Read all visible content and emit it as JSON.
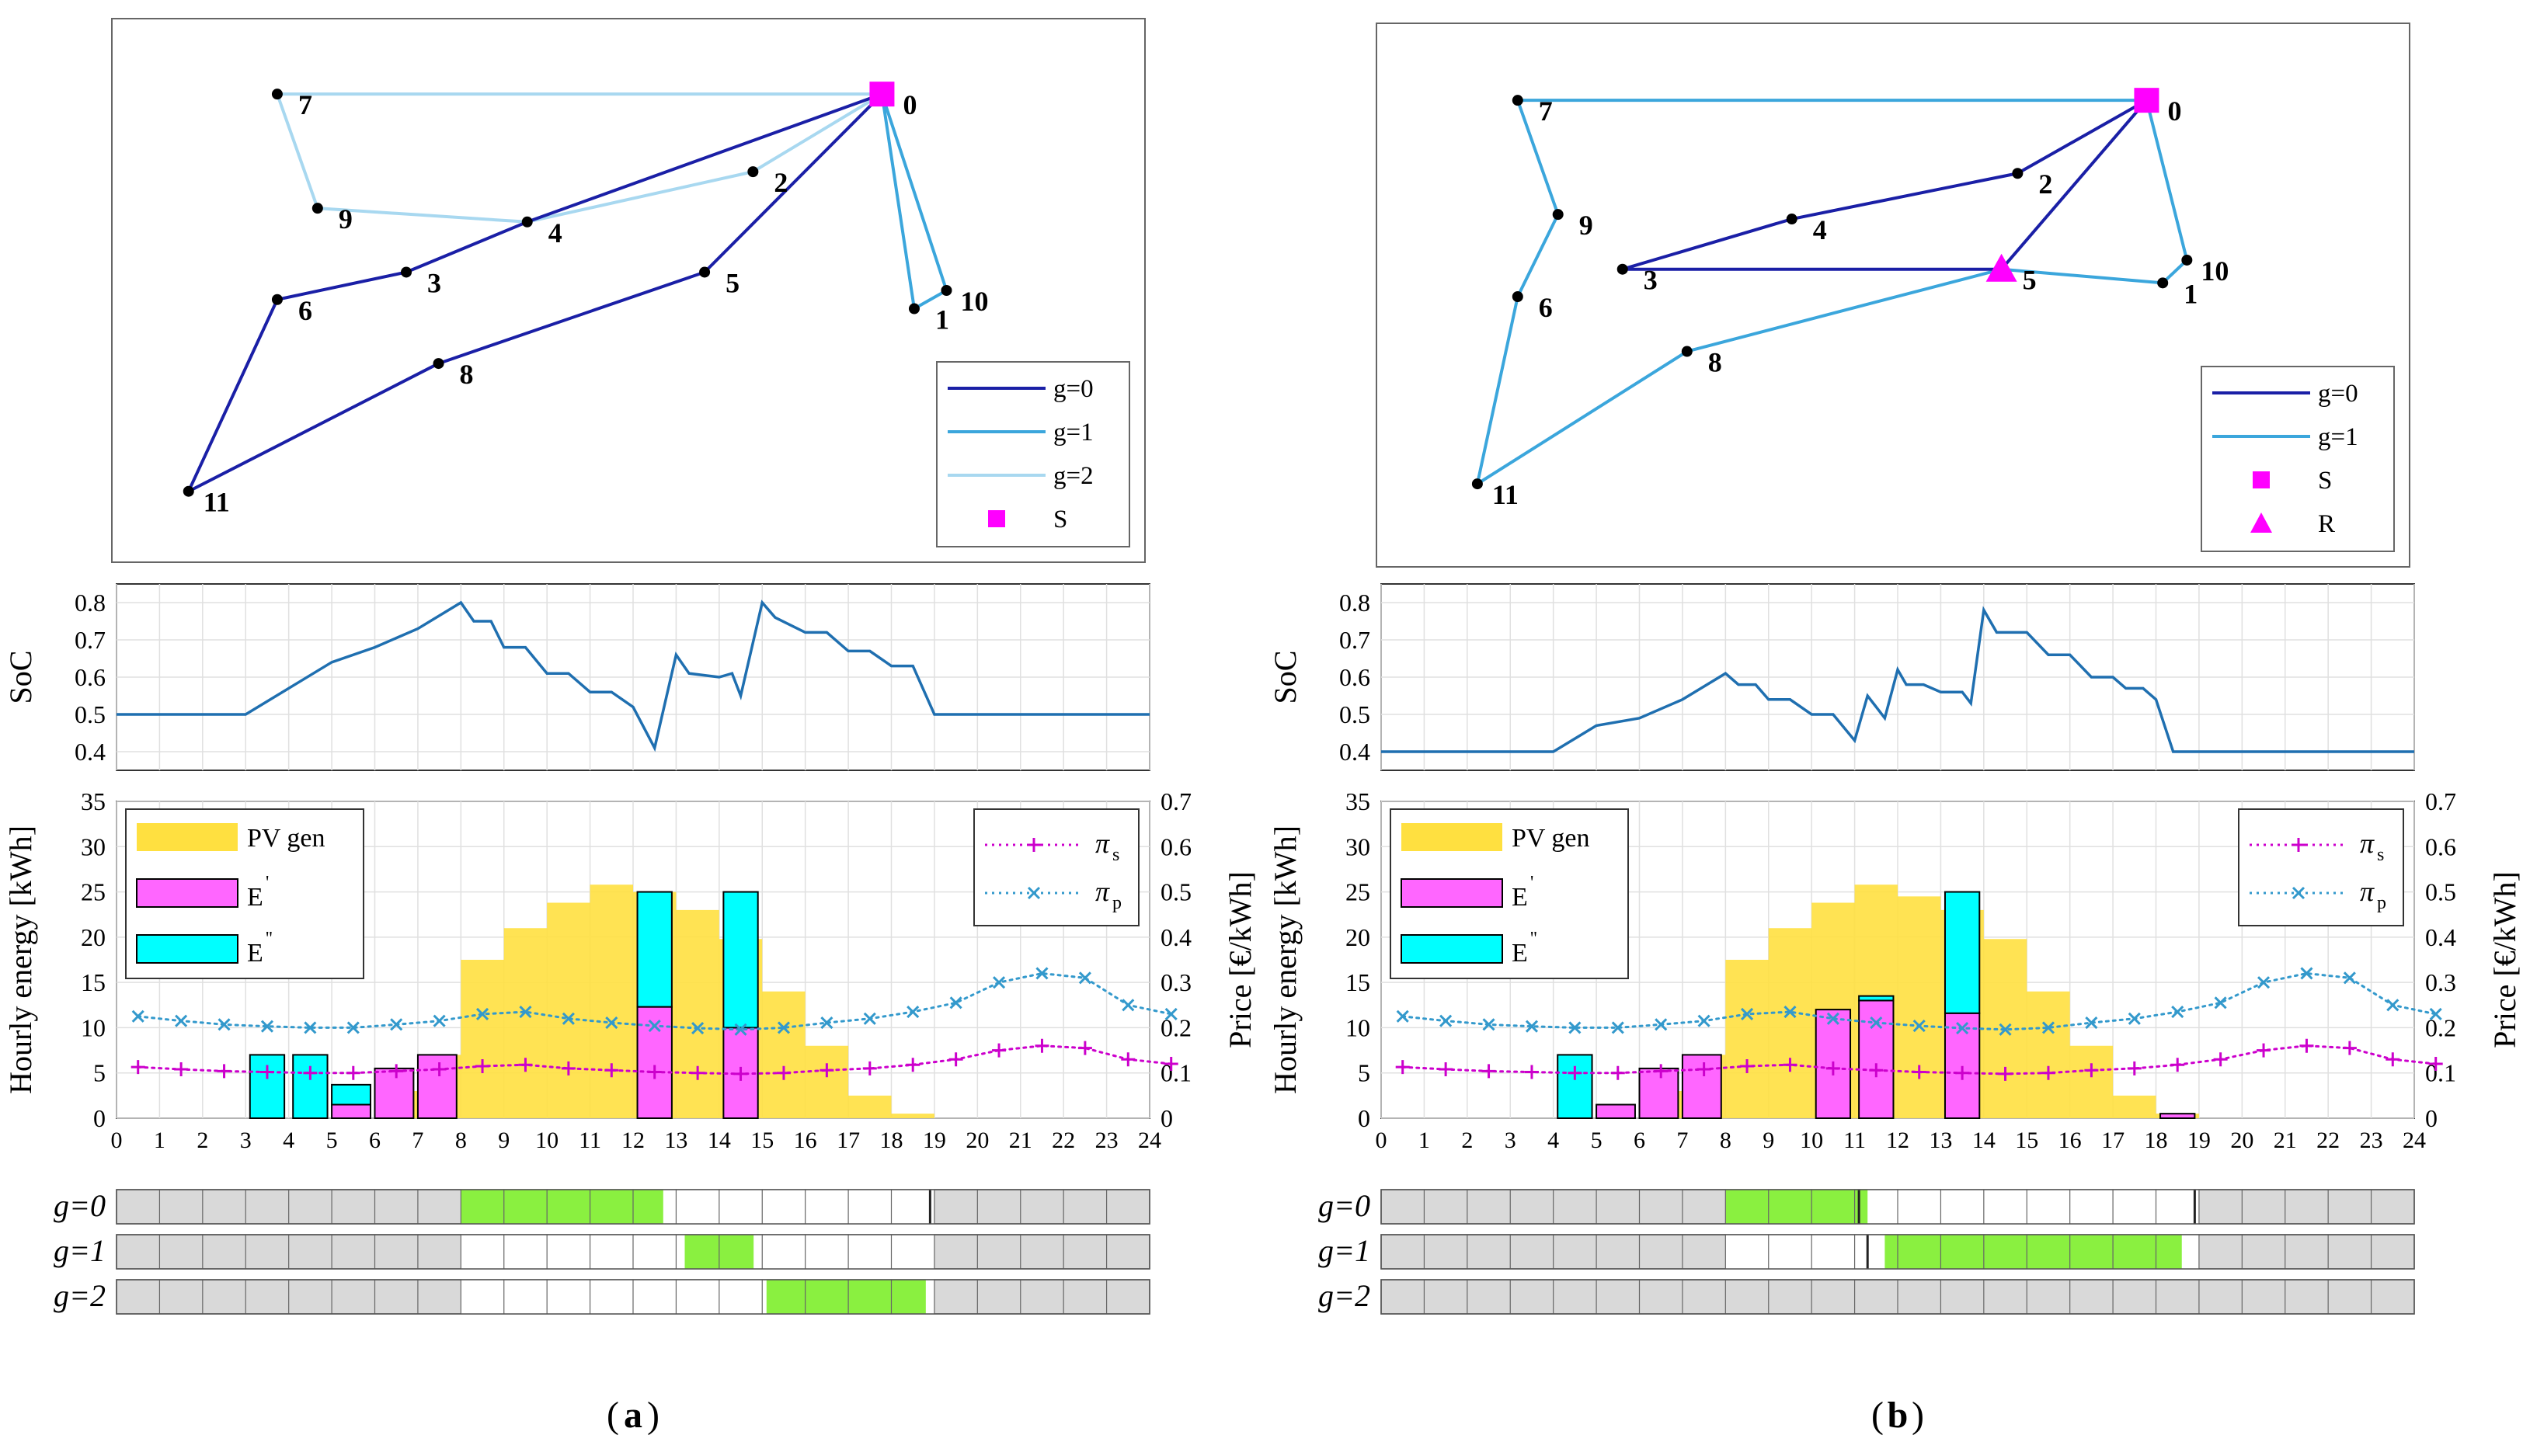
{
  "colors": {
    "g0": "#1a1fa6",
    "g1": "#3ba6dc",
    "g2": "#a8d8f0",
    "station": "#ff00ff",
    "pv": "#ffe040",
    "e_prime": "#ff66ff",
    "e_dprime": "#00ffff",
    "pi_s": "#cc00cc",
    "pi_p": "#3399cc",
    "soc": "#1f6fb0",
    "gantt_green": "#8af040",
    "gantt_gray": "#d9d9d9",
    "grid": "#e0e0e0"
  },
  "chart_data": [
    {
      "panel": "a",
      "caption_letter": "a",
      "routes": {
        "type": "scatter",
        "node_labels": [
          "0",
          "1",
          "2",
          "3",
          "4",
          "5",
          "6",
          "7",
          "8",
          "9",
          "10",
          "11"
        ],
        "nodes": {
          "0": [
            8.8,
            9.3
          ],
          "1": [
            9.2,
            4.6
          ],
          "2": [
            7.2,
            7.6
          ],
          "3": [
            2.9,
            5.4
          ],
          "4": [
            4.4,
            6.5
          ],
          "5": [
            6.6,
            5.4
          ],
          "6": [
            1.3,
            4.8
          ],
          "7": [
            1.3,
            9.3
          ],
          "8": [
            3.3,
            3.4
          ],
          "9": [
            1.8,
            6.8
          ],
          "10": [
            9.6,
            5.0
          ],
          "11": [
            0.2,
            0.6
          ]
        },
        "routes": [
          {
            "g": 0,
            "path": [
              "0",
              "4",
              "3",
              "6",
              "11",
              "8",
              "5",
              "0"
            ]
          },
          {
            "g": 1,
            "path": [
              "0",
              "10",
              "1",
              "0"
            ]
          },
          {
            "g": 2,
            "path": [
              "0",
              "7",
              "9",
              "4",
              "2",
              "0"
            ]
          }
        ],
        "station_nodes": [
          {
            "node": "0",
            "marker": "S"
          }
        ],
        "legend": [
          "g=0",
          "g=1",
          "g=2",
          "S"
        ]
      },
      "soc": {
        "type": "line",
        "ylabel": "SoC",
        "ylim": [
          0.35,
          0.85
        ],
        "yticks": [
          "0.4",
          "0.5",
          "0.6",
          "0.7",
          "0.8"
        ],
        "x": [
          0,
          3,
          5,
          6,
          7,
          8,
          8.3,
          8.7,
          9,
          9.5,
          10,
          10.5,
          11,
          11.5,
          12,
          12.5,
          13,
          13.3,
          14,
          14.3,
          14.5,
          15,
          15.3,
          16,
          16.5,
          17,
          17.5,
          18,
          18.5,
          19,
          20,
          24
        ],
        "y": [
          0.5,
          0.5,
          0.64,
          0.68,
          0.73,
          0.8,
          0.75,
          0.75,
          0.68,
          0.68,
          0.61,
          0.61,
          0.56,
          0.56,
          0.52,
          0.41,
          0.66,
          0.61,
          0.6,
          0.61,
          0.55,
          0.8,
          0.76,
          0.72,
          0.72,
          0.67,
          0.67,
          0.63,
          0.63,
          0.5,
          0.5,
          0.5
        ]
      },
      "energy": {
        "type": "bar",
        "ylabel": "Hourly energy [kWh]",
        "ylabel2": "Price [€/kWh]",
        "ylim": [
          0,
          35
        ],
        "ylim2": [
          0,
          0.7
        ],
        "yticks": [
          "0",
          "5",
          "10",
          "15",
          "20",
          "25",
          "30",
          "35"
        ],
        "yticks2": [
          "0",
          "0.1",
          "0.2",
          "0.3",
          "0.4",
          "0.5",
          "0.6",
          "0.7"
        ],
        "xticks": [
          "0",
          "1",
          "2",
          "3",
          "4",
          "5",
          "6",
          "7",
          "8",
          "9",
          "10",
          "11",
          "12",
          "13",
          "14",
          "15",
          "16",
          "17",
          "18",
          "19",
          "20",
          "21",
          "22",
          "23",
          "24"
        ],
        "pv_gen": [
          0,
          0,
          0,
          0,
          0,
          0,
          3,
          7,
          17.5,
          21,
          23.8,
          25.8,
          25,
          23,
          19.8,
          14,
          8,
          2.5,
          0.5,
          0,
          0,
          0,
          0,
          0
        ],
        "e_prime": [
          {
            "start": 5.0,
            "end": 5.9,
            "value": 1.5
          },
          {
            "start": 6.0,
            "end": 6.9,
            "value": 5.5
          },
          {
            "start": 7.0,
            "end": 7.9,
            "value": 7
          },
          {
            "start": 12.1,
            "end": 12.9,
            "value": 12.3
          },
          {
            "start": 14.1,
            "end": 14.9,
            "value": 10
          }
        ],
        "e_dprime": [
          {
            "start": 3.1,
            "end": 3.9,
            "bottom": 0,
            "top": 7
          },
          {
            "start": 4.1,
            "end": 4.9,
            "bottom": 0,
            "top": 7
          },
          {
            "start": 5.0,
            "end": 5.9,
            "bottom": 1.5,
            "top": 3.7
          },
          {
            "start": 12.1,
            "end": 12.9,
            "bottom": 12.3,
            "top": 25
          },
          {
            "start": 14.1,
            "end": 14.9,
            "bottom": 10,
            "top": 25
          }
        ],
        "pi_s": [
          0.113,
          0.108,
          0.104,
          0.102,
          0.1,
          0.1,
          0.104,
          0.108,
          0.115,
          0.118,
          0.11,
          0.106,
          0.102,
          0.1,
          0.098,
          0.1,
          0.106,
          0.11,
          0.118,
          0.13,
          0.15,
          0.16,
          0.155,
          0.13,
          0.12
        ],
        "pi_p": [
          0.225,
          0.215,
          0.207,
          0.203,
          0.2,
          0.2,
          0.207,
          0.215,
          0.23,
          0.235,
          0.22,
          0.211,
          0.204,
          0.199,
          0.196,
          0.2,
          0.211,
          0.22,
          0.235,
          0.255,
          0.3,
          0.32,
          0.31,
          0.25,
          0.23
        ],
        "legend": {
          "pv": "PV gen",
          "e1": "E",
          "e2": "E",
          "ps_sym": "π",
          "ps_sub": "s",
          "pp_sym": "π",
          "pp_sub": "p"
        }
      },
      "schedule": {
        "rows": [
          {
            "label": "g=0",
            "white_from": 8,
            "white_to": 19,
            "green_from": 8,
            "green_to": 12.7,
            "extra_marks": [
              18.9
            ]
          },
          {
            "label": "g=1",
            "white_from": 8,
            "white_to": 19,
            "green_from": 13.2,
            "green_to": 14.8,
            "extra_marks": []
          },
          {
            "label": "g=2",
            "white_from": 8,
            "white_to": 19,
            "green_from": 15.1,
            "green_to": 18.8,
            "extra_marks": []
          }
        ]
      }
    },
    {
      "panel": "b",
      "caption_letter": "b",
      "routes": {
        "type": "scatter",
        "node_labels": [
          "0",
          "1",
          "2",
          "3",
          "4",
          "5",
          "6",
          "7",
          "8",
          "9",
          "10",
          "11"
        ],
        "nodes": {
          "0": [
            8.8,
            9.3
          ],
          "1": [
            9.0,
            5.3
          ],
          "2": [
            7.2,
            7.7
          ],
          "3": [
            2.3,
            5.6
          ],
          "4": [
            4.4,
            6.7
          ],
          "5": [
            7.0,
            5.6
          ],
          "6": [
            1.0,
            5.0
          ],
          "7": [
            1.0,
            9.3
          ],
          "8": [
            3.1,
            3.8
          ],
          "9": [
            1.5,
            6.8
          ],
          "10": [
            9.3,
            5.8
          ],
          "11": [
            0.5,
            0.9
          ]
        },
        "routes": [
          {
            "g": 0,
            "path": [
              "5",
              "0",
              "2",
              "4",
              "3",
              "5"
            ]
          },
          {
            "g": 1,
            "path": [
              "0",
              "7",
              "9",
              "6",
              "11",
              "8",
              "5",
              "1",
              "10",
              "0"
            ]
          }
        ],
        "station_nodes": [
          {
            "node": "0",
            "marker": "S"
          },
          {
            "node": "5",
            "marker": "R"
          }
        ],
        "legend": [
          "g=0",
          "g=1",
          "S",
          "R"
        ]
      },
      "soc": {
        "type": "line",
        "ylabel": "SoC",
        "ylim": [
          0.35,
          0.85
        ],
        "yticks": [
          "0.4",
          "0.5",
          "0.6",
          "0.7",
          "0.8"
        ],
        "x": [
          0,
          4,
          5,
          6,
          7,
          8,
          8.3,
          8.7,
          9,
          9.5,
          10,
          10.5,
          11,
          11.3,
          11.7,
          12,
          12.2,
          12.6,
          13,
          13.5,
          13.7,
          14,
          14.3,
          14.5,
          15,
          15.5,
          16,
          16.5,
          17,
          17.3,
          17.7,
          18,
          18.4,
          24
        ],
        "y": [
          0.4,
          0.4,
          0.47,
          0.49,
          0.54,
          0.61,
          0.58,
          0.58,
          0.54,
          0.54,
          0.5,
          0.5,
          0.43,
          0.55,
          0.49,
          0.62,
          0.58,
          0.58,
          0.56,
          0.56,
          0.53,
          0.78,
          0.72,
          0.72,
          0.72,
          0.66,
          0.66,
          0.6,
          0.6,
          0.57,
          0.57,
          0.54,
          0.4,
          0.4
        ]
      },
      "energy": {
        "type": "bar",
        "ylabel": "Hourly energy [kWh]",
        "ylabel2": "Price [€/kWh]",
        "ylim": [
          0,
          35
        ],
        "ylim2": [
          0,
          0.7
        ],
        "yticks": [
          "0",
          "5",
          "10",
          "15",
          "20",
          "25",
          "30",
          "35"
        ],
        "yticks2": [
          "0",
          "0.1",
          "0.2",
          "0.3",
          "0.4",
          "0.5",
          "0.6",
          "0.7"
        ],
        "xticks": [
          "0",
          "1",
          "2",
          "3",
          "4",
          "5",
          "6",
          "7",
          "8",
          "9",
          "10",
          "11",
          "12",
          "13",
          "14",
          "15",
          "16",
          "17",
          "18",
          "19",
          "20",
          "21",
          "22",
          "23",
          "24"
        ],
        "pv_gen": [
          0,
          0,
          0,
          0,
          0,
          0,
          3,
          7,
          17.5,
          21,
          23.8,
          25.8,
          24.5,
          23,
          19.8,
          14,
          8,
          2.5,
          0.5,
          0,
          0,
          0,
          0,
          0
        ],
        "e_prime": [
          {
            "start": 5.0,
            "end": 5.9,
            "value": 1.5
          },
          {
            "start": 6.0,
            "end": 6.9,
            "value": 5.5
          },
          {
            "start": 7.0,
            "end": 7.9,
            "value": 7
          },
          {
            "start": 10.1,
            "end": 10.9,
            "value": 12
          },
          {
            "start": 11.1,
            "end": 11.9,
            "value": 13
          },
          {
            "start": 13.1,
            "end": 13.9,
            "value": 11.6
          },
          {
            "start": 18.1,
            "end": 18.9,
            "value": 0.5
          }
        ],
        "e_dprime": [
          {
            "start": 4.1,
            "end": 4.9,
            "bottom": 0,
            "top": 7
          },
          {
            "start": 11.1,
            "end": 11.9,
            "bottom": 13,
            "top": 13.5
          },
          {
            "start": 13.1,
            "end": 13.9,
            "bottom": 11.6,
            "top": 25
          }
        ],
        "pi_s": [
          0.113,
          0.108,
          0.104,
          0.102,
          0.1,
          0.1,
          0.104,
          0.108,
          0.115,
          0.118,
          0.11,
          0.106,
          0.102,
          0.1,
          0.098,
          0.1,
          0.106,
          0.11,
          0.118,
          0.13,
          0.15,
          0.16,
          0.155,
          0.13,
          0.12
        ],
        "pi_p": [
          0.225,
          0.215,
          0.207,
          0.203,
          0.2,
          0.2,
          0.207,
          0.215,
          0.23,
          0.235,
          0.22,
          0.211,
          0.204,
          0.199,
          0.196,
          0.2,
          0.211,
          0.22,
          0.235,
          0.255,
          0.3,
          0.32,
          0.31,
          0.25,
          0.23
        ],
        "legend": {
          "pv": "PV gen",
          "e1": "E",
          "e2": "E",
          "ps_sym": "π",
          "ps_sub": "s",
          "pp_sym": "π",
          "pp_sub": "p"
        }
      },
      "schedule": {
        "rows": [
          {
            "label": "g=0",
            "white_from": 8,
            "white_to": 19,
            "green_from": 8,
            "green_to": 11.3,
            "extra_marks": [
              11.1,
              18.9
            ]
          },
          {
            "label": "g=1",
            "white_from": 8,
            "white_to": 19,
            "green_from": 11.7,
            "green_to": 18.6,
            "extra_marks": [
              11.3
            ]
          },
          {
            "label": "g=2",
            "white_from": 0,
            "white_to": 0,
            "green_from": 0,
            "green_to": 0,
            "extra_marks": []
          }
        ]
      }
    }
  ]
}
